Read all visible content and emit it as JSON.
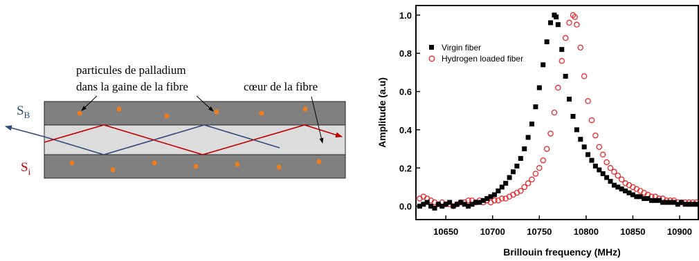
{
  "diagram": {
    "label_particles_line1": "particules de palladium",
    "label_particles_line2": "dans la gaine de la fibre",
    "label_core": "cœur de la fibre",
    "label_sb_main": "S",
    "label_sb_sub": "B",
    "label_si_main": "S",
    "label_si_sub": "i",
    "colors": {
      "cladding": "#808080",
      "core": "#dcdcdc",
      "particle": "#f07c1c",
      "stokes_b": "#2e4a7a",
      "stokes_i": "#c00000"
    }
  },
  "chart_data": {
    "type": "scatter",
    "xlabel": "Brillouin frequency (MHz)",
    "ylabel": "Amplitude (a.u)",
    "xlim": [
      10618,
      10920
    ],
    "ylim": [
      -0.07,
      1.05
    ],
    "xticks": [
      10650,
      10700,
      10750,
      10800,
      10850,
      10900
    ],
    "yticks": [
      0.0,
      0.2,
      0.4,
      0.6,
      0.8,
      1.0
    ],
    "xtick_labels": [
      "10650",
      "10700",
      "10750",
      "10800",
      "10850",
      "10900"
    ],
    "ytick_labels": [
      "0.0",
      "0.2",
      "0.4",
      "0.6",
      "0.8",
      "1.0"
    ],
    "legend": "top-left",
    "series": [
      {
        "name": "Virgin fiber",
        "marker": "filled-square",
        "color": "#000000",
        "x": [
          10622,
          10626,
          10630,
          10634,
          10638,
          10642,
          10646,
          10650,
          10654,
          10658,
          10662,
          10666,
          10670,
          10674,
          10678,
          10682,
          10686,
          10690,
          10694,
          10698,
          10702,
          10706,
          10710,
          10714,
          10718,
          10722,
          10726,
          10730,
          10734,
          10738,
          10742,
          10746,
          10750,
          10754,
          10758,
          10762,
          10766,
          10768,
          10770,
          10774,
          10778,
          10782,
          10786,
          10790,
          10794,
          10798,
          10802,
          10806,
          10810,
          10814,
          10818,
          10822,
          10826,
          10830,
          10834,
          10838,
          10842,
          10846,
          10850,
          10854,
          10858,
          10862,
          10866,
          10870,
          10874,
          10878,
          10882,
          10886,
          10890,
          10894,
          10898,
          10902,
          10906,
          10910,
          10914,
          10918
        ],
        "y": [
          0.0,
          0.01,
          0.02,
          0.0,
          -0.01,
          0.01,
          0.0,
          0.01,
          0.02,
          0.0,
          0.01,
          0.02,
          0.01,
          0.0,
          0.01,
          0.02,
          0.02,
          0.03,
          0.04,
          0.05,
          0.06,
          0.08,
          0.1,
          0.12,
          0.15,
          0.18,
          0.21,
          0.25,
          0.3,
          0.36,
          0.43,
          0.52,
          0.62,
          0.74,
          0.86,
          0.96,
          1.0,
          0.99,
          0.95,
          0.82,
          0.68,
          0.56,
          0.47,
          0.4,
          0.35,
          0.31,
          0.27,
          0.24,
          0.21,
          0.19,
          0.17,
          0.15,
          0.13,
          0.11,
          0.1,
          0.09,
          0.08,
          0.07,
          0.06,
          0.05,
          0.05,
          0.04,
          0.04,
          0.03,
          0.03,
          0.03,
          0.02,
          0.02,
          0.02,
          0.02,
          0.01,
          0.02,
          0.01,
          0.01,
          0.01,
          0.01
        ]
      },
      {
        "name": "Hydrogen loaded fiber",
        "marker": "open-circle",
        "color": "#e8282a",
        "x": [
          10622,
          10626,
          10630,
          10634,
          10638,
          10642,
          10646,
          10650,
          10654,
          10658,
          10662,
          10666,
          10670,
          10674,
          10678,
          10682,
          10686,
          10690,
          10694,
          10698,
          10702,
          10706,
          10710,
          10714,
          10718,
          10722,
          10726,
          10730,
          10734,
          10738,
          10742,
          10746,
          10750,
          10754,
          10758,
          10762,
          10766,
          10770,
          10774,
          10778,
          10782,
          10786,
          10788,
          10790,
          10794,
          10798,
          10802,
          10806,
          10810,
          10814,
          10818,
          10822,
          10826,
          10830,
          10834,
          10838,
          10842,
          10846,
          10850,
          10854,
          10858,
          10862,
          10866,
          10870,
          10874,
          10878,
          10882,
          10886,
          10890,
          10894,
          10898,
          10902,
          10906,
          10910,
          10914,
          10918
        ],
        "y": [
          0.04,
          0.05,
          0.04,
          0.03,
          0.02,
          0.01,
          0.02,
          0.01,
          0.01,
          0.0,
          0.01,
          0.02,
          0.02,
          0.03,
          0.03,
          0.02,
          0.03,
          0.02,
          0.03,
          0.02,
          0.03,
          0.03,
          0.04,
          0.04,
          0.05,
          0.06,
          0.07,
          0.08,
          0.1,
          0.12,
          0.14,
          0.17,
          0.2,
          0.24,
          0.3,
          0.38,
          0.49,
          0.62,
          0.76,
          0.88,
          0.96,
          1.0,
          0.99,
          0.95,
          0.83,
          0.68,
          0.55,
          0.45,
          0.37,
          0.31,
          0.27,
          0.23,
          0.2,
          0.18,
          0.16,
          0.14,
          0.12,
          0.11,
          0.1,
          0.09,
          0.08,
          0.07,
          0.06,
          0.05,
          0.05,
          0.04,
          0.04,
          0.03,
          0.03,
          0.03,
          0.02,
          0.02,
          0.02,
          0.02,
          0.02,
          0.02
        ]
      }
    ]
  }
}
